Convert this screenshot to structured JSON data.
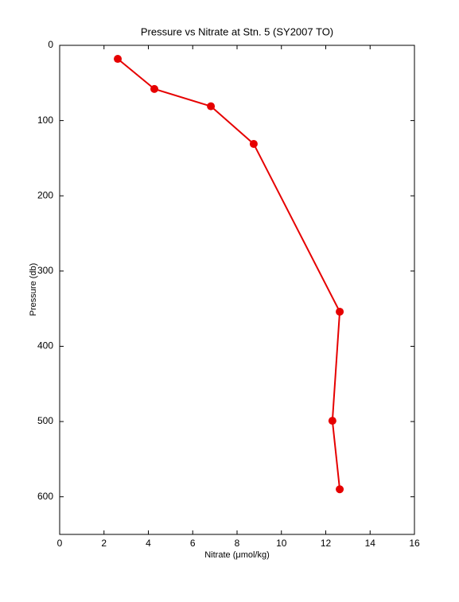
{
  "chart_data": {
    "type": "line",
    "title": "Pressure vs Nitrate at Stn. 5 (SY2007 TO)",
    "x_label": "Nitrate (μmol/kg)",
    "y_label": "Pressure (db)",
    "x": [
      2.62,
      4.27,
      6.82,
      8.75,
      12.63,
      12.3,
      12.63
    ],
    "values": [
      18,
      58,
      81,
      131,
      354,
      499,
      590
    ],
    "color": "#e60000",
    "xlim": [
      0,
      16
    ],
    "xticks": [
      0,
      2,
      4,
      6,
      8,
      10,
      12,
      14,
      16
    ],
    "ylim": [
      0,
      650
    ],
    "yticks": [
      0,
      100,
      200,
      300,
      400,
      500,
      600
    ],
    "y_reversed": true,
    "grid": false
  }
}
